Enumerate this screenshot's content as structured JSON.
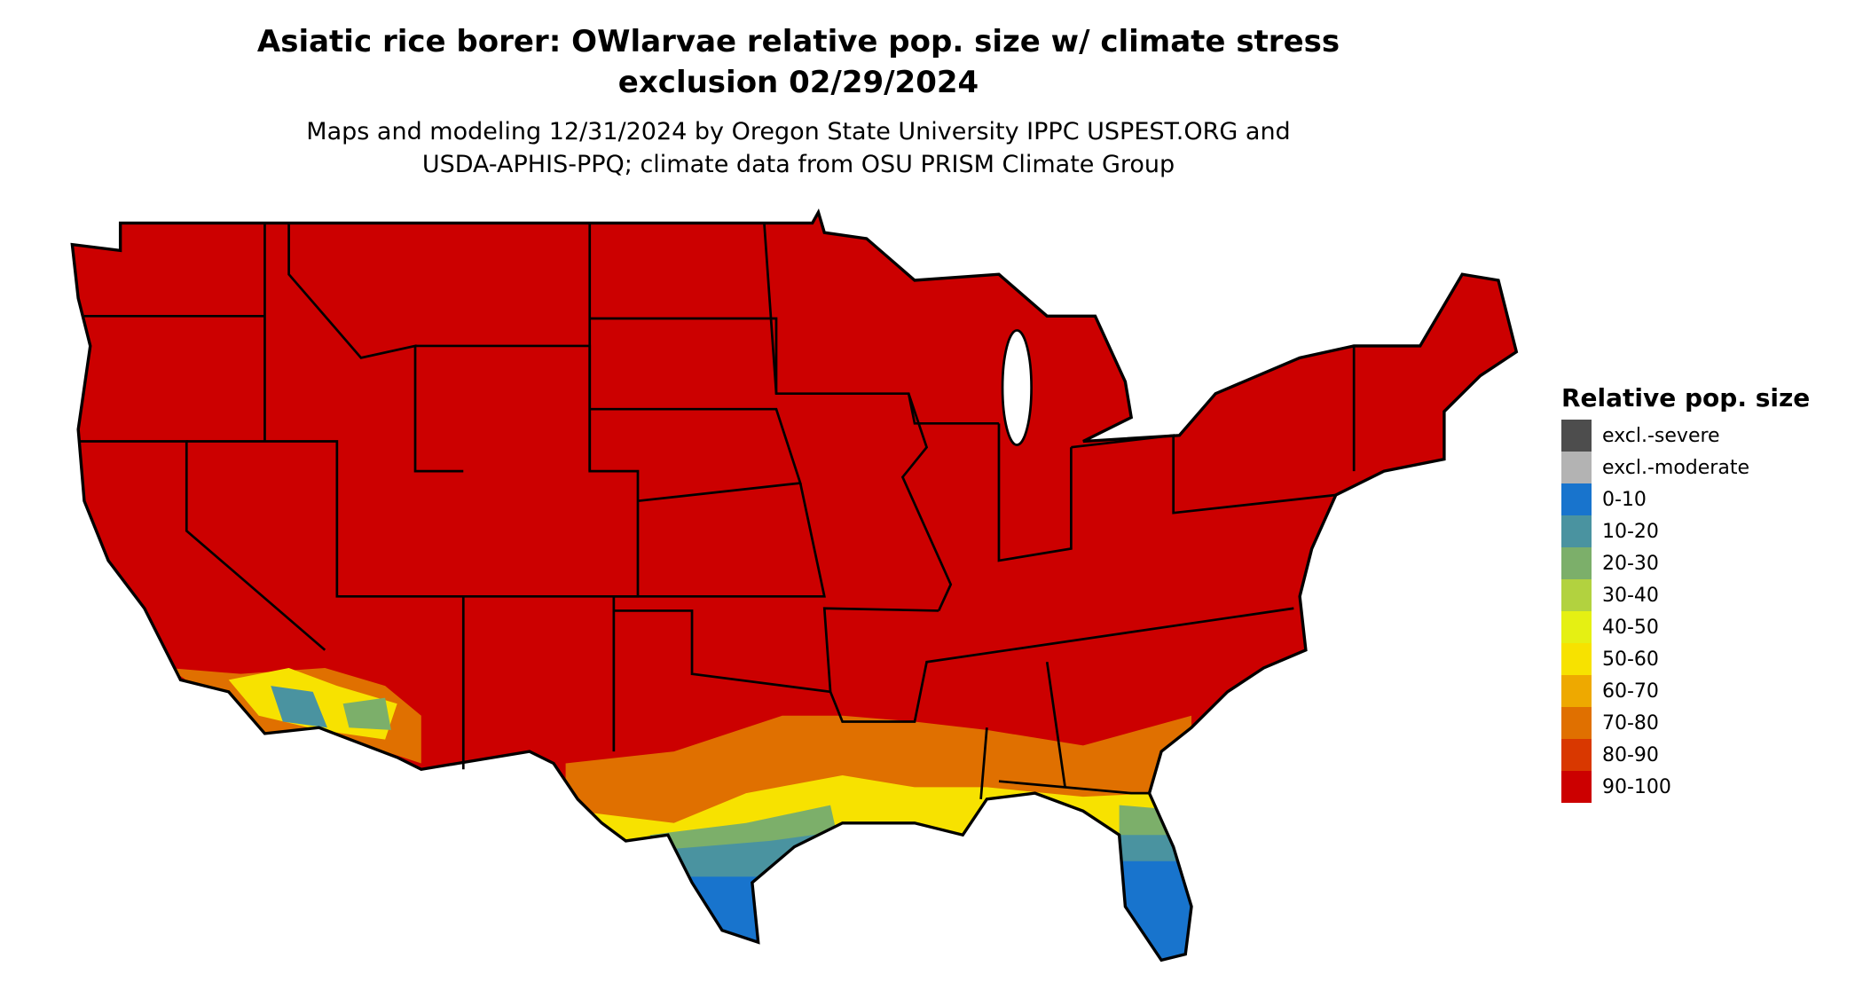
{
  "title": {
    "line1": "Asiatic rice borer: OWlarvae relative pop. size w/ climate stress",
    "line2": "exclusion 02/29/2024"
  },
  "subtitle": {
    "line1": "Maps and modeling 12/31/2024 by Oregon State University IPPC USPEST.ORG and",
    "line2": "USDA-APHIS-PPQ; climate data from OSU PRISM Climate Group"
  },
  "legend": {
    "title": "Relative pop. size",
    "items": [
      {
        "label": "excl.-severe",
        "color": "#4d4d4d"
      },
      {
        "label": "excl.-moderate",
        "color": "#b3b3b3"
      },
      {
        "label": "0-10",
        "color": "#1874cd"
      },
      {
        "label": "10-20",
        "color": "#4a93a0"
      },
      {
        "label": "20-30",
        "color": "#7caf6a"
      },
      {
        "label": "30-40",
        "color": "#b2d23f"
      },
      {
        "label": "40-50",
        "color": "#e5f013"
      },
      {
        "label": "50-60",
        "color": "#f7e200"
      },
      {
        "label": "60-70",
        "color": "#eea900"
      },
      {
        "label": "70-80",
        "color": "#e07000"
      },
      {
        "label": "80-90",
        "color": "#d93800"
      },
      {
        "label": "90-100",
        "color": "#cc0000"
      }
    ]
  }
}
